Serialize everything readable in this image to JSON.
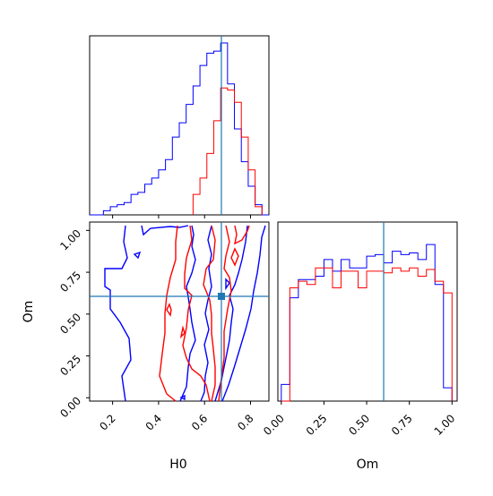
{
  "colors": {
    "blue": "#0000ff",
    "red": "#ff0000",
    "truth": "#1f77b4"
  },
  "chart_data": [
    {
      "type": "histogram",
      "panel": "H0 marginal",
      "xlim": [
        0.1,
        0.88
      ],
      "truth": 0.67,
      "series": [
        {
          "color": "blue",
          "edges": [
            0.1,
            0.13,
            0.16,
            0.19,
            0.22,
            0.25,
            0.28,
            0.31,
            0.34,
            0.37,
            0.4,
            0.43,
            0.46,
            0.49,
            0.52,
            0.55,
            0.58,
            0.61,
            0.64,
            0.67,
            0.7,
            0.73,
            0.76,
            0.79,
            0.82,
            0.85,
            0.88
          ],
          "counts": [
            0,
            0,
            2,
            4,
            5,
            6,
            10,
            11,
            15,
            18,
            22,
            27,
            38,
            45,
            54,
            63,
            73,
            79,
            80,
            84,
            64,
            42,
            26,
            14,
            5,
            0
          ]
        },
        {
          "color": "red",
          "edges": [
            0.55,
            0.58,
            0.61,
            0.64,
            0.67,
            0.7,
            0.73,
            0.76,
            0.79,
            0.82,
            0.85
          ],
          "counts": [
            10,
            18,
            30,
            46,
            62,
            61,
            55,
            38,
            22,
            4
          ]
        }
      ]
    },
    {
      "type": "contour",
      "panel": "H0 vs Om",
      "xlabel": "H0",
      "ylabel": "Om",
      "xlim": [
        0.1,
        0.88
      ],
      "ylim": [
        -0.02,
        1.05
      ],
      "xticks": [
        "0.2",
        "0.4",
        "0.6",
        "0.8"
      ],
      "yticks": [
        "0.00",
        "0.25",
        "0.50",
        "0.75",
        "1.00"
      ],
      "truth": {
        "x": 0.67,
        "y": 0.6
      }
    },
    {
      "type": "histogram",
      "panel": "Om marginal",
      "xlabel": "Om",
      "xlim": [
        -0.02,
        1.03
      ],
      "xticks": [
        "0.00",
        "0.25",
        "0.50",
        "0.75",
        "1.00"
      ],
      "truth": 0.6,
      "series": [
        {
          "color": "blue",
          "edges": [
            0,
            0.05,
            0.1,
            0.15,
            0.2,
            0.25,
            0.3,
            0.35,
            0.4,
            0.45,
            0.5,
            0.55,
            0.6,
            0.65,
            0.7,
            0.75,
            0.8,
            0.85,
            0.9,
            0.95,
            1.0
          ],
          "counts": [
            10,
            62,
            73,
            73,
            75,
            85,
            78,
            85,
            80,
            80,
            87,
            88,
            83,
            90,
            88,
            89,
            85,
            94,
            70,
            8
          ]
        },
        {
          "color": "red",
          "edges": [
            0,
            0.05,
            0.1,
            0.15,
            0.2,
            0.25,
            0.3,
            0.35,
            0.4,
            0.45,
            0.5,
            0.55,
            0.6,
            0.65,
            0.7,
            0.75,
            0.8,
            0.85,
            0.9,
            0.95,
            1.0
          ],
          "counts": [
            0,
            68,
            72,
            70,
            80,
            80,
            68,
            78,
            78,
            68,
            78,
            78,
            77,
            80,
            78,
            80,
            75,
            79,
            72,
            65
          ]
        }
      ]
    }
  ]
}
